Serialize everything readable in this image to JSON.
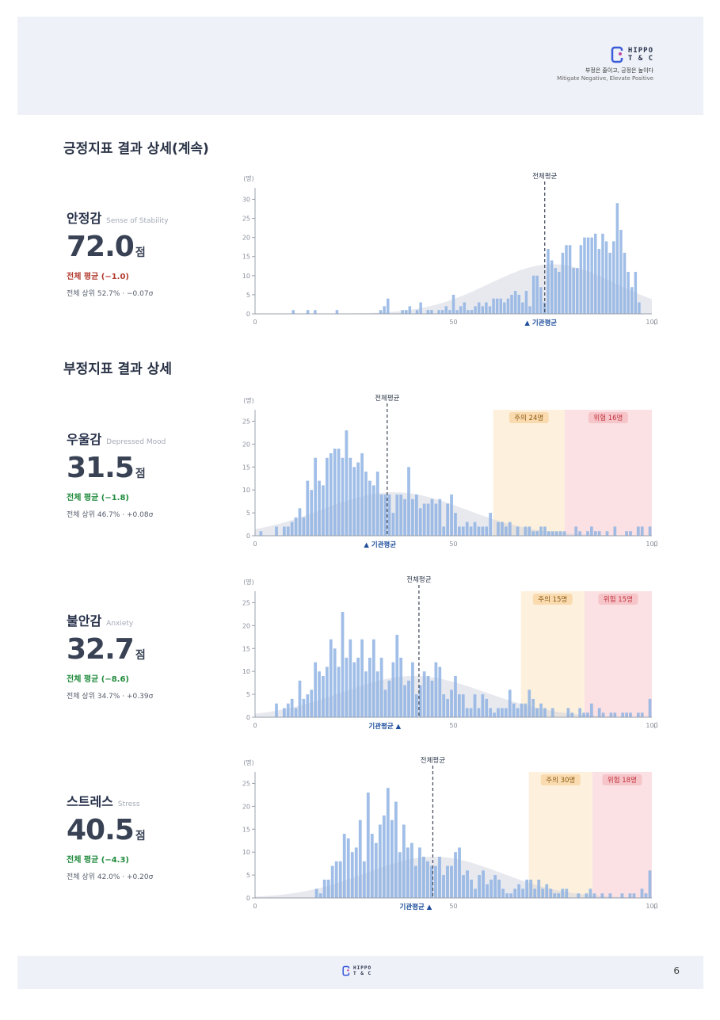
{
  "header": {
    "brand_line1": "HIPPO",
    "brand_line2": "T & C",
    "tagline_ko": "부정은 줄이고, 긍정은 높이다",
    "tagline_en": "Mitigate Negative, Elevate Positive"
  },
  "sections": {
    "positive_title": "긍정지표 결과 상세(계속)",
    "negative_title": "부정지표 결과 상세"
  },
  "metrics": {
    "stability": {
      "name": "안정감",
      "name_en": "Sense of Stability",
      "score": "72.0",
      "unit": "점",
      "avg_text": "전체 평균 (−1.0)",
      "avg_color": "#b23a2f",
      "rank_text": "전체 상위 52.7% · −0.07σ"
    },
    "depressed": {
      "name": "우울감",
      "name_en": "Depressed Mood",
      "score": "31.5",
      "unit": "점",
      "avg_text": "전체 평균 (−1.8)",
      "avg_color": "#1f8a3b",
      "rank_text": "전체 상위 46.7% · +0.08σ"
    },
    "anxiety": {
      "name": "불안감",
      "name_en": "Anxiety",
      "score": "32.7",
      "unit": "점",
      "avg_text": "전체 평균 (−8.6)",
      "avg_color": "#1f8a3b",
      "rank_text": "전체 상위 34.7% · +0.39σ"
    },
    "stress": {
      "name": "스트레스",
      "name_en": "Stress",
      "score": "40.5",
      "unit": "점",
      "avg_text": "전체 평균 (−4.3)",
      "avg_color": "#1f8a3b",
      "rank_text": "전체 상위 42.0% · +0.20σ"
    }
  },
  "footer": {
    "brand_line1": "HIPPO",
    "brand_line2": "T & C",
    "page_number": "6"
  },
  "chart_data": [
    {
      "type": "bar",
      "id": "stability",
      "y_unit_label": "(명)",
      "x_unit_label": "(점)",
      "x_ticks": [
        "0",
        "50",
        "100"
      ],
      "y_ticks": [
        "0",
        "5",
        "10",
        "15",
        "20",
        "25",
        "30"
      ],
      "xlim": [
        0,
        100
      ],
      "ylim": [
        0,
        33
      ],
      "overall_avg_label": "전체평균",
      "overall_avg": 73,
      "inst_avg_label": "▲ 기관평균",
      "inst_avg": 72.0,
      "curve": {
        "mean": 75,
        "sd": 16,
        "peak": 13
      },
      "zones": [],
      "values": [
        0,
        0,
        0,
        0,
        0,
        0,
        0,
        0,
        0,
        0,
        1,
        0,
        0,
        0,
        1,
        0,
        1,
        0,
        0,
        0,
        0,
        0,
        1,
        0,
        0,
        0,
        0,
        0,
        0,
        0,
        0,
        0,
        0,
        0,
        1,
        2,
        4,
        0,
        0,
        0,
        1,
        1,
        2,
        0,
        1,
        3,
        0,
        1,
        1,
        0,
        1,
        1,
        2,
        1,
        5,
        1,
        2,
        3,
        1,
        1,
        2,
        3,
        2,
        3,
        2,
        4,
        4,
        4,
        3,
        4,
        5,
        6,
        5,
        3,
        6,
        2,
        10,
        10,
        7,
        3,
        17,
        14,
        12,
        11,
        16,
        18,
        18,
        12,
        12,
        18,
        20,
        20,
        20,
        21,
        17,
        21,
        19,
        16,
        19,
        29,
        22,
        16,
        11,
        7,
        11,
        3,
        0,
        0,
        0
      ]
    },
    {
      "type": "bar",
      "id": "depressed",
      "y_unit_label": "(명)",
      "x_unit_label": "(점)",
      "x_ticks": [
        "0",
        "50",
        "100"
      ],
      "y_ticks": [
        "0",
        "5",
        "10",
        "15",
        "20",
        "25"
      ],
      "xlim": [
        0,
        100
      ],
      "ylim": [
        0,
        27.5
      ],
      "overall_avg_label": "전체평균",
      "overall_avg": 33.3,
      "inst_avg_label": "▲ 기관평균",
      "inst_avg": 31.5,
      "curve": {
        "mean": 35,
        "sd": 18,
        "peak": 9.5
      },
      "zones": [
        {
          "from": 60,
          "to": 78,
          "label": "주의 24명",
          "kind": "caution"
        },
        {
          "from": 78,
          "to": 100,
          "label": "위험 16명",
          "kind": "danger"
        }
      ],
      "values": [
        0,
        1,
        0,
        0,
        0,
        2,
        0,
        2,
        2,
        3,
        4,
        6,
        4,
        12,
        10,
        17,
        12,
        11,
        17,
        18,
        19,
        19,
        17,
        23,
        17,
        15,
        16,
        18,
        14,
        12,
        11,
        14,
        9,
        9,
        9,
        5,
        9,
        9,
        8,
        15,
        8,
        9,
        6,
        7,
        7,
        8,
        7,
        8,
        2,
        7,
        9,
        5,
        2,
        2,
        3,
        2,
        3,
        2,
        2,
        2,
        5,
        0,
        3,
        3,
        2,
        3,
        0,
        2,
        0,
        2,
        2,
        1,
        1,
        2,
        2,
        1,
        1,
        1,
        1,
        1,
        0,
        0,
        2,
        1,
        0,
        1,
        2,
        1,
        1,
        0,
        1,
        0,
        2,
        0,
        0,
        1,
        1,
        0,
        2,
        2,
        0,
        2
      ]
    },
    {
      "type": "bar",
      "id": "anxiety",
      "y_unit_label": "(명)",
      "x_unit_label": "(점)",
      "x_ticks": [
        "0",
        "50",
        "100"
      ],
      "y_ticks": [
        "0",
        "5",
        "10",
        "15",
        "20",
        "25"
      ],
      "xlim": [
        0,
        100
      ],
      "ylim": [
        0,
        27.5
      ],
      "overall_avg_label": "전체평균",
      "overall_avg": 41.3,
      "inst_avg_label": "기관평균 ▲",
      "inst_avg": 32.7,
      "curve": {
        "mean": 40,
        "sd": 18,
        "peak": 9
      },
      "zones": [
        {
          "from": 67,
          "to": 83,
          "label": "주의 15명",
          "kind": "caution"
        },
        {
          "from": 83,
          "to": 100,
          "label": "위험 15명",
          "kind": "danger"
        }
      ],
      "values": [
        0,
        0,
        0,
        0,
        0,
        3,
        0,
        2,
        3,
        4,
        2,
        8,
        4,
        5,
        6,
        12,
        10,
        9,
        11,
        17,
        15,
        11,
        23,
        13,
        17,
        12,
        13,
        17,
        10,
        13,
        17,
        10,
        13,
        6,
        8,
        12,
        18,
        13,
        7,
        8,
        12,
        5,
        7,
        10,
        9,
        8,
        12,
        11,
        5,
        4,
        6,
        9,
        5,
        5,
        2,
        2,
        5,
        2,
        5,
        4,
        2,
        1,
        2,
        2,
        2,
        6,
        3,
        2,
        3,
        3,
        6,
        4,
        2,
        3,
        2,
        0,
        2,
        0,
        0,
        0,
        2,
        1,
        0,
        2,
        1,
        1,
        3,
        0,
        2,
        1,
        0,
        1,
        1,
        0,
        1,
        1,
        1,
        0,
        1,
        1,
        0,
        4
      ]
    },
    {
      "type": "bar",
      "id": "stress",
      "y_unit_label": "(명)",
      "x_unit_label": "(점)",
      "x_ticks": [
        "0",
        "50",
        "100"
      ],
      "y_ticks": [
        "0",
        "5",
        "10",
        "15",
        "20",
        "25"
      ],
      "xlim": [
        0,
        100
      ],
      "ylim": [
        0,
        27.5
      ],
      "overall_avg_label": "전체평균",
      "overall_avg": 44.8,
      "inst_avg_label": "기관평균 ▲",
      "inst_avg": 40.5,
      "curve": {
        "mean": 45,
        "sd": 17,
        "peak": 9
      },
      "zones": [
        {
          "from": 69,
          "to": 85,
          "label": "주의 30명",
          "kind": "caution"
        },
        {
          "from": 85,
          "to": 100,
          "label": "위험 18명",
          "kind": "danger"
        }
      ],
      "values": [
        0,
        0,
        0,
        0,
        0,
        0,
        0,
        0,
        0,
        0,
        0,
        0,
        0,
        0,
        0,
        2,
        1,
        4,
        4,
        7,
        8,
        8,
        14,
        13,
        10,
        11,
        17,
        8,
        23,
        14,
        12,
        16,
        18,
        24,
        17,
        21,
        10,
        16,
        11,
        12,
        7,
        11,
        9,
        8,
        7,
        7,
        9,
        5,
        7,
        7,
        10,
        11,
        5,
        6,
        4,
        2,
        5,
        6,
        3,
        4,
        5,
        4,
        2,
        1,
        1,
        2,
        3,
        2,
        4,
        4,
        2,
        4,
        2,
        3,
        2,
        1,
        1,
        2,
        2,
        0,
        0,
        1,
        0,
        1,
        2,
        1,
        0,
        1,
        0,
        1,
        0,
        0,
        1,
        0,
        1,
        1,
        0,
        2,
        1,
        6
      ]
    }
  ]
}
